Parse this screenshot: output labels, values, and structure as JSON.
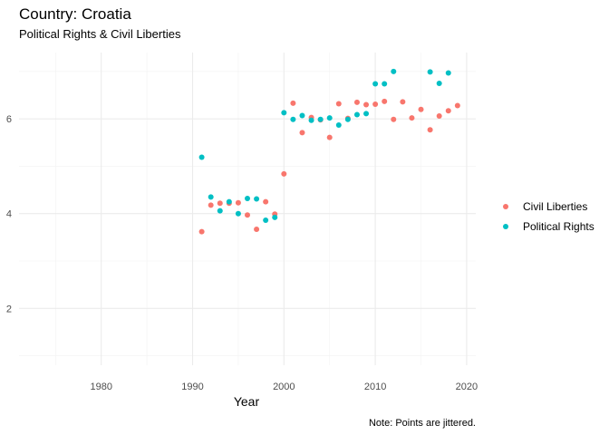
{
  "chart_data": {
    "type": "scatter",
    "title": "Country: Croatia",
    "subtitle": "Political Rights & Civil Liberties",
    "xlabel": "Year",
    "ylabel": "",
    "caption": "Note: Points are jittered.",
    "xlim": [
      1971,
      2021
    ],
    "ylim": [
      0.8,
      7.4
    ],
    "x_ticks": [
      1980,
      1990,
      2000,
      2010,
      2020
    ],
    "y_ticks": [
      2,
      4,
      6
    ],
    "grid": true,
    "legend_position": "right",
    "series": [
      {
        "name": "Civil Liberties",
        "color": "#F8766D",
        "points": [
          [
            1991,
            3.62
          ],
          [
            1992,
            4.18
          ],
          [
            1993,
            4.22
          ],
          [
            1994,
            4.22
          ],
          [
            1995,
            4.23
          ],
          [
            1996,
            3.97
          ],
          [
            1997,
            3.67
          ],
          [
            1998,
            4.25
          ],
          [
            1999,
            3.99
          ],
          [
            2000,
            4.84
          ],
          [
            2001,
            6.33
          ],
          [
            2002,
            5.71
          ],
          [
            2003,
            6.03
          ],
          [
            2004,
            5.98
          ],
          [
            2005,
            5.61
          ],
          [
            2006,
            6.32
          ],
          [
            2007,
            6.01
          ],
          [
            2008,
            6.35
          ],
          [
            2009,
            6.3
          ],
          [
            2010,
            6.31
          ],
          [
            2011,
            6.37
          ],
          [
            2012,
            5.99
          ],
          [
            2013,
            6.36
          ],
          [
            2014,
            6.02
          ],
          [
            2015,
            6.2
          ],
          [
            2016,
            5.77
          ],
          [
            2017,
            6.06
          ],
          [
            2018,
            6.17
          ],
          [
            2019,
            6.28
          ]
        ]
      },
      {
        "name": "Political Rights",
        "color": "#00BFC4",
        "points": [
          [
            1991,
            5.19
          ],
          [
            1992,
            4.35
          ],
          [
            1993,
            4.06
          ],
          [
            1994,
            4.25
          ],
          [
            1995,
            4.0
          ],
          [
            1996,
            4.32
          ],
          [
            1997,
            4.31
          ],
          [
            1998,
            3.86
          ],
          [
            1999,
            3.92
          ],
          [
            2000,
            6.13
          ],
          [
            2001,
            5.99
          ],
          [
            2002,
            6.07
          ],
          [
            2003,
            5.97
          ],
          [
            2004,
            5.99
          ],
          [
            2005,
            6.02
          ],
          [
            2006,
            5.87
          ],
          [
            2007,
            5.99
          ],
          [
            2008,
            6.09
          ],
          [
            2009,
            6.11
          ],
          [
            2010,
            6.74
          ],
          [
            2011,
            6.74
          ],
          [
            2012,
            7.0
          ],
          [
            2016,
            6.99
          ],
          [
            2017,
            6.75
          ],
          [
            2018,
            6.97
          ]
        ]
      }
    ]
  }
}
